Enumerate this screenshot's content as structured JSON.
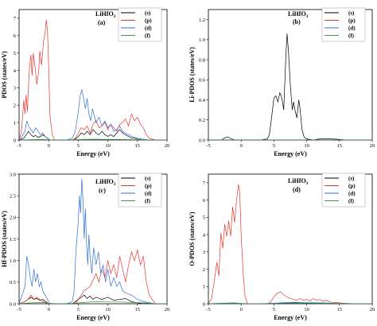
{
  "chart_data": [
    {
      "type": "line",
      "panel": "a",
      "panel_label": "(a)",
      "title": "LiHfO",
      "title_sub": "3",
      "xlabel": "Energy (eV)",
      "ylabel": "PDOS (states/eV)",
      "xlim": [
        -5,
        20
      ],
      "ylim": [
        0,
        7.5
      ],
      "xticks": [
        -5,
        0,
        5,
        10,
        15,
        20
      ],
      "yticks": [
        0,
        1,
        2,
        3,
        4,
        5,
        6,
        7
      ],
      "series": [
        {
          "name": "(s)",
          "color": "#000000",
          "x": [
            -5,
            -4.2,
            -3.8,
            -3.4,
            -3,
            -2.6,
            -2.2,
            -1.8,
            -1.4,
            -1,
            -0.6,
            -0.2,
            0.2,
            1,
            2,
            3,
            4,
            4.5,
            5,
            5.5,
            6,
            6.5,
            7,
            7.5,
            8,
            8.5,
            9,
            9.5,
            10,
            10.5,
            11,
            11.5,
            12,
            12.5,
            13,
            13.5,
            14,
            14.5,
            15,
            16,
            17,
            18,
            20
          ],
          "y": [
            0,
            0.1,
            0.3,
            0.5,
            0.3,
            0.2,
            0.25,
            0.15,
            0.2,
            0.3,
            0.2,
            0.1,
            0,
            0,
            0,
            0,
            0,
            0.05,
            0.2,
            0.4,
            0.3,
            0.5,
            0.3,
            0.6,
            0.4,
            0.3,
            0.5,
            0.3,
            0.2,
            0.3,
            0.2,
            0.4,
            0.6,
            0.4,
            0.3,
            0.2,
            0.1,
            0.1,
            0.05,
            0,
            0,
            0,
            0
          ]
        },
        {
          "name": "(p)",
          "color": "#e8342f",
          "x": [
            -5,
            -4.6,
            -4.2,
            -4,
            -3.8,
            -3.6,
            -3.3,
            -3,
            -2.8,
            -2.6,
            -2.3,
            -2,
            -1.7,
            -1.5,
            -1.2,
            -0.9,
            -0.6,
            -0.4,
            -0.2,
            0,
            0.2,
            0.6,
            1,
            2,
            3,
            4,
            4.5,
            5,
            5.5,
            6,
            6.5,
            7,
            7.5,
            8,
            8.5,
            9,
            9.5,
            10,
            10.5,
            11,
            11.5,
            12,
            12.5,
            13,
            13.5,
            14,
            14.5,
            15,
            15.5,
            16,
            16.5,
            17,
            18,
            20
          ],
          "y": [
            0,
            0.5,
            2.3,
            1.5,
            2.6,
            1.6,
            3.9,
            4.9,
            3.7,
            5,
            4.2,
            3.2,
            3.9,
            5.1,
            4.3,
            5.6,
            6.2,
            6.9,
            6.3,
            4.2,
            1.5,
            0.3,
            0,
            0,
            0,
            0,
            0.1,
            0.4,
            0.7,
            0.6,
            0.8,
            0.4,
            0.9,
            1.1,
            0.7,
            0.8,
            1.0,
            0.6,
            0.9,
            0.7,
            0.5,
            0.9,
            1.0,
            1.2,
            0.8,
            1.5,
            1.1,
            1.3,
            0.9,
            0.7,
            0.3,
            0.1,
            0,
            0
          ]
        },
        {
          "name": "(d)",
          "color": "#2f6fd6",
          "x": [
            -5,
            -4.5,
            -4,
            -3.7,
            -3.4,
            -3,
            -2.6,
            -2.2,
            -1.8,
            -1.4,
            -1,
            -0.6,
            -0.2,
            0.2,
            1,
            2,
            3,
            4,
            4.5,
            5,
            5.3,
            5.6,
            5.9,
            6.2,
            6.5,
            6.8,
            7.1,
            7.4,
            7.7,
            8,
            8.5,
            9,
            9.5,
            10,
            10.5,
            11,
            11.5,
            12,
            12.5,
            13,
            13.5,
            14,
            15,
            16,
            17,
            20
          ],
          "y": [
            0,
            0.2,
            0.5,
            1.1,
            0.8,
            0.6,
            0.4,
            0.7,
            0.5,
            0.3,
            0.4,
            0.2,
            0.1,
            0,
            0,
            0,
            0,
            0.1,
            0.5,
            1.6,
            2.5,
            2.9,
            2.4,
            1.8,
            2.4,
            1.5,
            1.1,
            1.8,
            1.4,
            1.0,
            1.3,
            0.8,
            1.1,
            0.7,
            0.9,
            0.5,
            0.6,
            0.8,
            0.5,
            0.4,
            0.3,
            0.2,
            0.1,
            0.05,
            0,
            0
          ]
        },
        {
          "name": "(f)",
          "color": "#2e9e3e",
          "x": [
            -5,
            -3,
            -1,
            0,
            2,
            4,
            6,
            8,
            10,
            12,
            14,
            16,
            18,
            20
          ],
          "y": [
            0,
            0.02,
            0.03,
            0.01,
            0,
            0.01,
            0.03,
            0.04,
            0.03,
            0.03,
            0.02,
            0.01,
            0,
            0
          ]
        }
      ]
    },
    {
      "type": "line",
      "panel": "b",
      "panel_label": "(b)",
      "title": "LiHfO",
      "title_sub": "3",
      "xlabel": "Energy (eV)",
      "ylabel": "Li-PDOS (states/eV)",
      "xlim": [
        -5,
        20
      ],
      "ylim": [
        0,
        1.3
      ],
      "xticks": [
        -5,
        0,
        5,
        10,
        15,
        20
      ],
      "yticks": [
        0,
        0.2,
        0.4,
        0.6,
        0.8,
        1.0,
        1.2
      ],
      "series": [
        {
          "name": "(s)",
          "color": "#000000",
          "x": [
            -5,
            -3,
            -2.5,
            -2,
            -1.5,
            -1,
            0,
            2,
            3,
            4,
            4.3,
            4.6,
            5,
            5.3,
            5.6,
            5.9,
            6.2,
            6.5,
            6.8,
            7,
            7.2,
            7.5,
            7.8,
            8,
            8.2,
            8.5,
            8.8,
            9,
            9.3,
            9.6,
            10,
            11,
            12,
            14,
            16,
            20
          ],
          "y": [
            0,
            0,
            0.02,
            0.03,
            0.01,
            0,
            0,
            0,
            0,
            0.01,
            0.05,
            0.2,
            0.42,
            0.44,
            0.38,
            0.47,
            0.42,
            0.3,
            0.8,
            1.06,
            0.9,
            0.55,
            0.3,
            0.38,
            0.3,
            0.22,
            0.4,
            0.3,
            0.1,
            0.03,
            0.01,
            0,
            0.01,
            0.01,
            0,
            0
          ]
        },
        {
          "name": "(p)",
          "color": "#e8342f",
          "x": [
            -5,
            20
          ],
          "y": [
            0,
            0
          ]
        },
        {
          "name": "(d)",
          "color": "#2f6fd6",
          "x": [
            -5,
            20
          ],
          "y": [
            0,
            0
          ]
        },
        {
          "name": "(f)",
          "color": "#2e9e3e",
          "x": [
            -5,
            20
          ],
          "y": [
            0,
            0
          ]
        }
      ]
    },
    {
      "type": "line",
      "panel": "c",
      "panel_label": "(c)",
      "title": "LiHfO",
      "title_sub": "3",
      "xlabel": "Energy (eV)",
      "ylabel": "Hf-PDOS (states/eV)",
      "xlim": [
        -5,
        20
      ],
      "ylim": [
        0,
        3.0
      ],
      "xticks": [
        -5,
        0,
        5,
        10,
        15,
        20
      ],
      "yticks": [
        0,
        0.5,
        1.0,
        1.5,
        2.0,
        2.5,
        3.0
      ],
      "series": [
        {
          "name": "(s)",
          "color": "#000000",
          "x": [
            -5,
            -4,
            -3.5,
            -3,
            -2.5,
            -2,
            -1.5,
            -1,
            -0.5,
            0,
            1,
            3,
            4,
            4.5,
            5,
            5.5,
            6,
            6.5,
            7,
            7.5,
            8,
            9,
            10,
            11,
            12,
            13,
            14,
            15,
            16,
            20
          ],
          "y": [
            0,
            0.05,
            0.1,
            0.15,
            0.1,
            0.12,
            0.08,
            0.1,
            0.05,
            0,
            0,
            0,
            0,
            0.05,
            0.1,
            0.15,
            0.2,
            0.12,
            0.18,
            0.1,
            0.15,
            0.1,
            0.15,
            0.08,
            0.1,
            0.12,
            0.05,
            0.02,
            0,
            0
          ]
        },
        {
          "name": "(p)",
          "color": "#e8342f",
          "x": [
            -5,
            -4,
            -3.5,
            -3,
            -2.5,
            -2,
            -1,
            0,
            1,
            3,
            4.5,
            5,
            6,
            7,
            8,
            8.5,
            9,
            9.5,
            10,
            10.5,
            11,
            11.5,
            12,
            12.5,
            13,
            13.5,
            14,
            14.5,
            15,
            15.5,
            16,
            16.5,
            17,
            18,
            20
          ],
          "y": [
            0,
            0.05,
            0.1,
            0.2,
            0.1,
            0.15,
            0.05,
            0,
            0,
            0,
            0,
            0.1,
            0.3,
            0.4,
            0.7,
            0.5,
            0.8,
            0.6,
            1.0,
            0.7,
            0.9,
            0.6,
            1.1,
            0.8,
            0.5,
            0.9,
            1.2,
            1.0,
            1.25,
            0.9,
            1.1,
            0.5,
            0.2,
            0,
            0
          ]
        },
        {
          "name": "(d)",
          "color": "#2f6fd6",
          "x": [
            -5,
            -4.5,
            -4,
            -3.7,
            -3.4,
            -3.1,
            -2.8,
            -2.5,
            -2.2,
            -1.9,
            -1.6,
            -1.3,
            -1,
            -0.6,
            -0.2,
            0.2,
            1,
            2,
            3,
            4,
            4.3,
            4.6,
            5,
            5.2,
            5.4,
            5.6,
            5.8,
            6,
            6.2,
            6.4,
            6.6,
            6.8,
            7,
            7.3,
            7.6,
            8,
            8.4,
            8.8,
            9.2,
            9.6,
            10,
            10.5,
            11,
            11.5,
            12,
            12.5,
            13,
            14,
            15,
            16,
            18,
            20
          ],
          "y": [
            0,
            0.2,
            0.4,
            1.1,
            0.9,
            0.6,
            0.4,
            0.8,
            0.5,
            0.7,
            0.4,
            0.5,
            0.3,
            0.2,
            0.1,
            0,
            0,
            0,
            0,
            0.05,
            0.3,
            1.2,
            1.9,
            2.5,
            2.1,
            2.9,
            2.4,
            1.5,
            2.2,
            1.4,
            0.9,
            1.6,
            1.1,
            0.7,
            1.3,
            0.9,
            1.2,
            0.7,
            0.9,
            0.5,
            0.8,
            0.4,
            0.6,
            0.4,
            0.5,
            0.3,
            0.25,
            0.2,
            0.1,
            0.05,
            0,
            0
          ]
        },
        {
          "name": "(f)",
          "color": "#2e9e3e",
          "x": [
            -5,
            -3,
            -1,
            0,
            2,
            4,
            6,
            8,
            10,
            12,
            14,
            16,
            18,
            20
          ],
          "y": [
            0,
            0.02,
            0.03,
            0.01,
            0,
            0.01,
            0.03,
            0.05,
            0.04,
            0.04,
            0.03,
            0.02,
            0,
            0
          ]
        }
      ]
    },
    {
      "type": "line",
      "panel": "d",
      "panel_label": "(d)",
      "title": "LiHfO",
      "title_sub": "3",
      "xlabel": "Energy (eV)",
      "ylabel": "O-PDOS (states/eV)",
      "xlim": [
        -5,
        20
      ],
      "ylim": [
        0,
        7.5
      ],
      "xticks": [
        -5,
        0,
        5,
        10,
        15,
        20
      ],
      "yticks": [
        0,
        1,
        2,
        3,
        4,
        5,
        6,
        7
      ],
      "series": [
        {
          "name": "(s)",
          "color": "#000000",
          "x": [
            -5,
            -3,
            -1,
            0,
            2,
            4,
            6,
            8,
            10,
            12,
            14,
            16,
            18,
            20
          ],
          "y": [
            0,
            0.02,
            0.03,
            0.01,
            0,
            0.01,
            0.03,
            0.05,
            0.04,
            0.04,
            0.02,
            0.01,
            0,
            0
          ]
        },
        {
          "name": "(p)",
          "color": "#e8342f",
          "x": [
            -5,
            -4.5,
            -4,
            -3.7,
            -3.4,
            -3.1,
            -2.8,
            -2.5,
            -2.2,
            -1.9,
            -1.6,
            -1.3,
            -1,
            -0.7,
            -0.4,
            -0.2,
            0,
            0.3,
            0.6,
            1,
            2,
            3,
            4,
            4.5,
            5,
            5.5,
            6,
            6.5,
            7,
            7.5,
            8,
            8.5,
            9,
            9.5,
            10,
            10.5,
            11,
            11.5,
            12,
            12.5,
            13,
            13.5,
            14,
            15,
            16,
            17,
            18,
            20
          ],
          "y": [
            0,
            0.3,
            1.6,
            2.4,
            1.6,
            4.1,
            3.2,
            4.6,
            3.9,
            4.8,
            3.9,
            5.6,
            4.7,
            6.0,
            6.9,
            6.3,
            4.0,
            1.8,
            0.4,
            0,
            0,
            0,
            0,
            0.1,
            0.4,
            0.6,
            0.7,
            0.5,
            0.4,
            0.3,
            0.25,
            0.2,
            0.3,
            0.2,
            0.25,
            0.15,
            0.3,
            0.2,
            0.25,
            0.15,
            0.2,
            0.1,
            0.08,
            0.05,
            0.02,
            0,
            0,
            0
          ]
        },
        {
          "name": "(d)",
          "color": "#2f6fd6",
          "x": [
            -5,
            -3,
            -1,
            0,
            2,
            4,
            6,
            8,
            10,
            12,
            14,
            16,
            18,
            20
          ],
          "y": [
            0,
            0.03,
            0.05,
            0.02,
            0,
            0.01,
            0.05,
            0.08,
            0.06,
            0.05,
            0.03,
            0.01,
            0,
            0
          ]
        },
        {
          "name": "(f)",
          "color": "#2e9e3e",
          "x": [
            -5,
            -3,
            -1,
            0,
            2,
            4,
            6,
            8,
            10,
            12,
            14,
            16,
            18,
            20
          ],
          "y": [
            0,
            0.01,
            0.02,
            0.01,
            0,
            0,
            0.01,
            0.02,
            0.02,
            0.01,
            0.01,
            0,
            0,
            0
          ]
        }
      ]
    }
  ]
}
